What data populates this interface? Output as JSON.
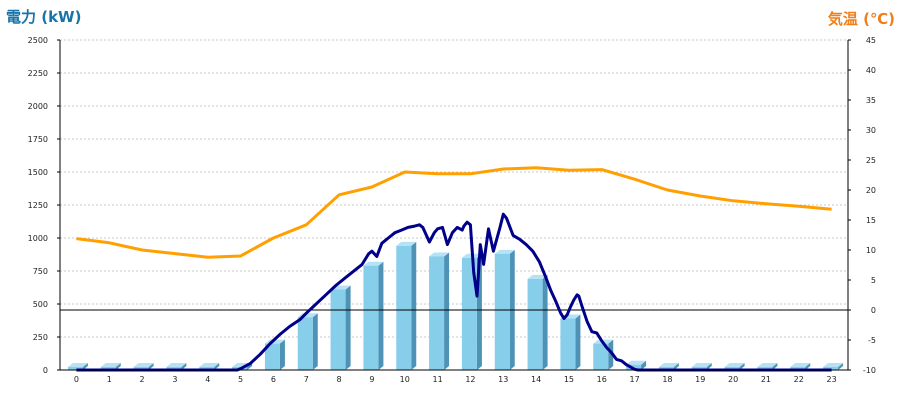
{
  "chart_data": {
    "type": "bar",
    "left_axis_title": "電力 (kW)",
    "right_axis_title": "気温 (℃)",
    "categories": [
      "0",
      "1",
      "2",
      "3",
      "4",
      "5",
      "6",
      "7",
      "8",
      "9",
      "10",
      "11",
      "12",
      "13",
      "14",
      "15",
      "16",
      "17",
      "18",
      "19",
      "20",
      "21",
      "22",
      "23"
    ],
    "left_ylim": [
      0,
      2500
    ],
    "left_ticks": [
      "0",
      "250",
      "500",
      "750",
      "1000",
      "1250",
      "1500",
      "1750",
      "2000",
      "2250",
      "2500"
    ],
    "right_ylim": [
      -10,
      45
    ],
    "right_ticks": [
      "-10",
      "-5",
      "0",
      "5",
      "10",
      "15",
      "20",
      "25",
      "30",
      "35",
      "40",
      "45"
    ],
    "bar_values": [
      0,
      0,
      0,
      0,
      0,
      0,
      200,
      400,
      610,
      790,
      940,
      860,
      850,
      880,
      690,
      390,
      200,
      40,
      0,
      0,
      0,
      0,
      0,
      0
    ],
    "power_curve": {
      "x": [
        4.9,
        5.0,
        5.3,
        5.6,
        5.9,
        6.2,
        6.5,
        6.8,
        7.0,
        7.3,
        7.6,
        7.9,
        8.2,
        8.5,
        8.7,
        8.9,
        9.0,
        9.15,
        9.3,
        9.5,
        9.7,
        9.9,
        10.1,
        10.3,
        10.45,
        10.55,
        10.75,
        10.9,
        11.0,
        11.15,
        11.3,
        11.45,
        11.6,
        11.75,
        11.8,
        11.9,
        12.0,
        12.1,
        12.2,
        12.3,
        12.4,
        12.55,
        12.7,
        12.9,
        13.0,
        13.1,
        13.3,
        13.5,
        13.7,
        13.9,
        14.1,
        14.3,
        14.45,
        14.6,
        14.75,
        14.85,
        14.95,
        15.05,
        15.15,
        15.25,
        15.3,
        15.4,
        15.55,
        15.7,
        15.85,
        16.0,
        16.15,
        16.3,
        16.45,
        16.6,
        16.75,
        16.9,
        17.0,
        17.1
      ],
      "y": [
        0,
        10,
        50,
        120,
        200,
        270,
        330,
        380,
        430,
        500,
        570,
        640,
        700,
        760,
        800,
        880,
        900,
        860,
        960,
        1000,
        1040,
        1060,
        1080,
        1090,
        1100,
        1080,
        970,
        1040,
        1070,
        1080,
        950,
        1040,
        1080,
        1060,
        1090,
        1120,
        1100,
        740,
        560,
        950,
        800,
        1070,
        900,
        1080,
        1180,
        1150,
        1020,
        990,
        950,
        900,
        820,
        700,
        600,
        520,
        430,
        390,
        420,
        480,
        530,
        570,
        560,
        480,
        370,
        290,
        280,
        220,
        170,
        130,
        80,
        70,
        40,
        20,
        5,
        0
      ]
    },
    "temperature_series": {
      "x": [
        0,
        1,
        2,
        3,
        4,
        5,
        6,
        7,
        8,
        9,
        10,
        11,
        12,
        13,
        14,
        15,
        16,
        17,
        18,
        19,
        20,
        21,
        22,
        23
      ],
      "y": [
        11.9,
        11.2,
        10.0,
        9.4,
        8.8,
        9.0,
        12.0,
        14.2,
        19.2,
        20.5,
        23.0,
        22.7,
        22.7,
        23.5,
        23.7,
        23.3,
        23.4,
        21.8,
        20.0,
        19.0,
        18.2,
        17.7,
        17.3,
        16.8
      ]
    },
    "reference_line_celsius": 0,
    "grid": true,
    "colors": {
      "bars": "#87ceeb",
      "bars_side": "#4e93b5",
      "bars_top": "#b6e2f5",
      "power_line": "#00008b",
      "temperature_line": "#ffa000",
      "left_title": "#1874a8",
      "right_title": "#ef7f1a"
    }
  }
}
